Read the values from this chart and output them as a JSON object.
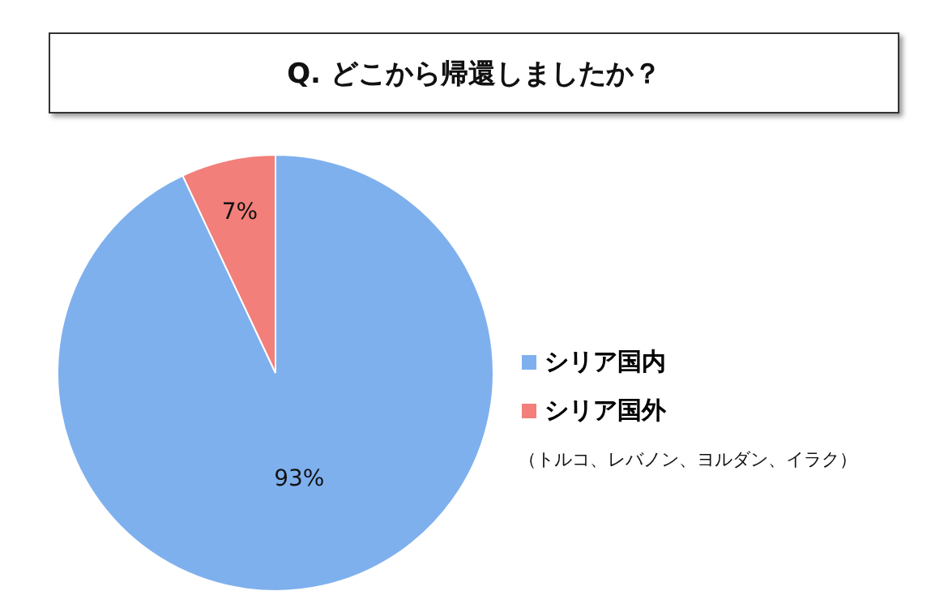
{
  "chart_data": {
    "type": "pie",
    "title": "Q. どこから帰還しましたか？",
    "categories": [
      "シリア国内",
      "シリア国外"
    ],
    "values": [
      93,
      7
    ],
    "colors": [
      "#7fb0ee",
      "#f27f7a"
    ],
    "value_labels": [
      "93%",
      "7%"
    ],
    "legend": "right",
    "annotations": [
      "（トルコ、レバノン、ヨルダン、イラク）"
    ]
  }
}
